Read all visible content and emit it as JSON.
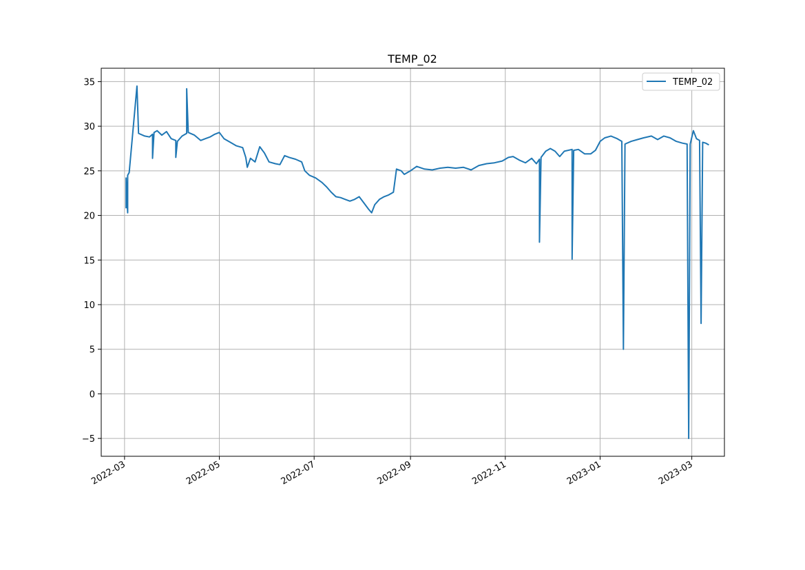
{
  "chart_data": {
    "type": "line",
    "title": "TEMP_02",
    "xlabel": "",
    "ylabel": "",
    "grid": true,
    "legend_placement": "top-right",
    "x_ticks": [
      "2022-03",
      "2022-05",
      "2022-07",
      "2022-09",
      "2022-11",
      "2023-01",
      "2023-03"
    ],
    "y_ticks": [
      "35",
      "30",
      "25",
      "20",
      "15",
      "10",
      "5",
      "0",
      "−5"
    ],
    "xlim": [
      "2022-02-14",
      "2023-03-22"
    ],
    "ylim": [
      -7.0,
      36.5
    ],
    "series": [
      {
        "name": "TEMP_02",
        "color": "#1f77b4",
        "points": [
          [
            "2022-03-02",
            20.8
          ],
          [
            "2022-03-02",
            24.2
          ],
          [
            "2022-03-03",
            20.3
          ],
          [
            "2022-03-03",
            24.5
          ],
          [
            "2022-03-04",
            24.8
          ],
          [
            "2022-03-09",
            34.5
          ],
          [
            "2022-03-10",
            29.2
          ],
          [
            "2022-03-14",
            28.9
          ],
          [
            "2022-03-17",
            28.8
          ],
          [
            "2022-03-19",
            29.1
          ],
          [
            "2022-03-19",
            26.4
          ],
          [
            "2022-03-20",
            29.3
          ],
          [
            "2022-03-22",
            29.5
          ],
          [
            "2022-03-25",
            29.0
          ],
          [
            "2022-03-28",
            29.4
          ],
          [
            "2022-03-31",
            28.6
          ],
          [
            "2022-04-03",
            28.4
          ],
          [
            "2022-04-03",
            26.5
          ],
          [
            "2022-04-04",
            28.3
          ],
          [
            "2022-04-07",
            28.9
          ],
          [
            "2022-04-10",
            29.2
          ],
          [
            "2022-04-10",
            34.2
          ],
          [
            "2022-04-11",
            29.3
          ],
          [
            "2022-04-15",
            29.0
          ],
          [
            "2022-04-19",
            28.4
          ],
          [
            "2022-04-22",
            28.6
          ],
          [
            "2022-04-25",
            28.8
          ],
          [
            "2022-04-28",
            29.1
          ],
          [
            "2022-05-01",
            29.3
          ],
          [
            "2022-05-04",
            28.6
          ],
          [
            "2022-05-08",
            28.2
          ],
          [
            "2022-05-12",
            27.8
          ],
          [
            "2022-05-16",
            27.6
          ],
          [
            "2022-05-18",
            26.5
          ],
          [
            "2022-05-19",
            25.4
          ],
          [
            "2022-05-21",
            26.4
          ],
          [
            "2022-05-24",
            26.0
          ],
          [
            "2022-05-27",
            27.7
          ],
          [
            "2022-05-30",
            27.0
          ],
          [
            "2022-06-02",
            26.0
          ],
          [
            "2022-06-06",
            25.8
          ],
          [
            "2022-06-09",
            25.7
          ],
          [
            "2022-06-12",
            26.7
          ],
          [
            "2022-06-15",
            26.5
          ],
          [
            "2022-06-19",
            26.3
          ],
          [
            "2022-06-23",
            26.0
          ],
          [
            "2022-06-25",
            25.0
          ],
          [
            "2022-06-28",
            24.5
          ],
          [
            "2022-07-02",
            24.2
          ],
          [
            "2022-07-06",
            23.7
          ],
          [
            "2022-07-09",
            23.2
          ],
          [
            "2022-07-12",
            22.6
          ],
          [
            "2022-07-15",
            22.1
          ],
          [
            "2022-07-18",
            22.0
          ],
          [
            "2022-07-21",
            21.8
          ],
          [
            "2022-07-24",
            21.6
          ],
          [
            "2022-07-27",
            21.8
          ],
          [
            "2022-07-30",
            22.1
          ],
          [
            "2022-08-02",
            21.4
          ],
          [
            "2022-08-05",
            20.7
          ],
          [
            "2022-08-07",
            20.3
          ],
          [
            "2022-08-09",
            21.2
          ],
          [
            "2022-08-12",
            21.8
          ],
          [
            "2022-08-15",
            22.1
          ],
          [
            "2022-08-18",
            22.3
          ],
          [
            "2022-08-21",
            22.6
          ],
          [
            "2022-08-23",
            25.2
          ],
          [
            "2022-08-26",
            25.0
          ],
          [
            "2022-08-28",
            24.6
          ],
          [
            "2022-09-01",
            25.0
          ],
          [
            "2022-09-05",
            25.5
          ],
          [
            "2022-09-10",
            25.2
          ],
          [
            "2022-09-15",
            25.1
          ],
          [
            "2022-09-20",
            25.3
          ],
          [
            "2022-09-25",
            25.4
          ],
          [
            "2022-09-30",
            25.3
          ],
          [
            "2022-10-05",
            25.4
          ],
          [
            "2022-10-10",
            25.1
          ],
          [
            "2022-10-15",
            25.6
          ],
          [
            "2022-10-20",
            25.8
          ],
          [
            "2022-10-25",
            25.9
          ],
          [
            "2022-10-30",
            26.1
          ],
          [
            "2022-11-03",
            26.5
          ],
          [
            "2022-11-06",
            26.6
          ],
          [
            "2022-11-10",
            26.2
          ],
          [
            "2022-11-14",
            25.9
          ],
          [
            "2022-11-18",
            26.4
          ],
          [
            "2022-11-21",
            25.8
          ],
          [
            "2022-11-23",
            26.3
          ],
          [
            "2022-11-23",
            17.0
          ],
          [
            "2022-11-24",
            26.5
          ],
          [
            "2022-11-27",
            27.2
          ],
          [
            "2022-11-30",
            27.5
          ],
          [
            "2022-12-03",
            27.2
          ],
          [
            "2022-12-06",
            26.6
          ],
          [
            "2022-12-09",
            27.2
          ],
          [
            "2022-12-14",
            27.4
          ],
          [
            "2022-12-14",
            15.1
          ],
          [
            "2022-12-15",
            27.3
          ],
          [
            "2022-12-18",
            27.4
          ],
          [
            "2022-12-22",
            26.9
          ],
          [
            "2022-12-26",
            26.9
          ],
          [
            "2022-12-29",
            27.3
          ],
          [
            "2023-01-01",
            28.3
          ],
          [
            "2023-01-04",
            28.7
          ],
          [
            "2023-01-08",
            28.9
          ],
          [
            "2023-01-12",
            28.6
          ],
          [
            "2023-01-15",
            28.3
          ],
          [
            "2023-01-16",
            5.0
          ],
          [
            "2023-01-17",
            28.0
          ],
          [
            "2023-01-21",
            28.3
          ],
          [
            "2023-01-25",
            28.5
          ],
          [
            "2023-01-29",
            28.7
          ],
          [
            "2023-02-03",
            28.9
          ],
          [
            "2023-02-07",
            28.5
          ],
          [
            "2023-02-11",
            28.9
          ],
          [
            "2023-02-15",
            28.7
          ],
          [
            "2023-02-19",
            28.3
          ],
          [
            "2023-02-23",
            28.1
          ],
          [
            "2023-02-26",
            28.0
          ],
          [
            "2023-02-27",
            -5.0
          ],
          [
            "2023-02-28",
            28.0
          ],
          [
            "2023-03-02",
            29.5
          ],
          [
            "2023-03-04",
            28.6
          ],
          [
            "2023-03-06",
            28.4
          ],
          [
            "2023-03-07",
            7.9
          ],
          [
            "2023-03-08",
            28.2
          ],
          [
            "2023-03-10",
            28.1
          ],
          [
            "2023-03-12",
            27.9
          ]
        ]
      }
    ]
  }
}
